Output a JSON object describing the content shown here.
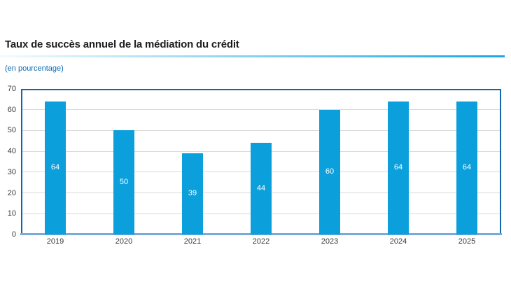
{
  "header": {
    "title": "Taux de succès annuel de la médiation du crédit",
    "subtitle": "(en pourcentage)"
  },
  "colors": {
    "bar": "#0ba0dc",
    "bar_label": "#ffffff",
    "frame": "#1565ad",
    "baseline": "#7aa9dc",
    "gridline": "#d9d9d9",
    "title_text": "#1d1d20",
    "subtitle_text": "#0a6ab5",
    "tick_text": "#3a3a3a",
    "rule_gradient_start": "#f2fbfe",
    "rule_gradient_end": "#18a7e6"
  },
  "chart_data": {
    "type": "bar",
    "title": "Taux de succès annuel de la médiation du crédit",
    "unit_label": "(en pourcentage)",
    "categories": [
      "2019",
      "2020",
      "2021",
      "2022",
      "2023",
      "2024",
      "2025"
    ],
    "values": [
      64,
      50,
      39,
      44,
      60,
      64,
      64
    ],
    "bar_value_labels": [
      "64",
      "50",
      "39",
      "44",
      "60",
      "64",
      "64"
    ],
    "xlabel": "",
    "ylabel": "",
    "ylim": [
      0,
      70
    ],
    "yticks": [
      0,
      10,
      20,
      30,
      40,
      50,
      60,
      70
    ],
    "grid": true,
    "legend": null,
    "bar_labels_position": "inside-center"
  }
}
